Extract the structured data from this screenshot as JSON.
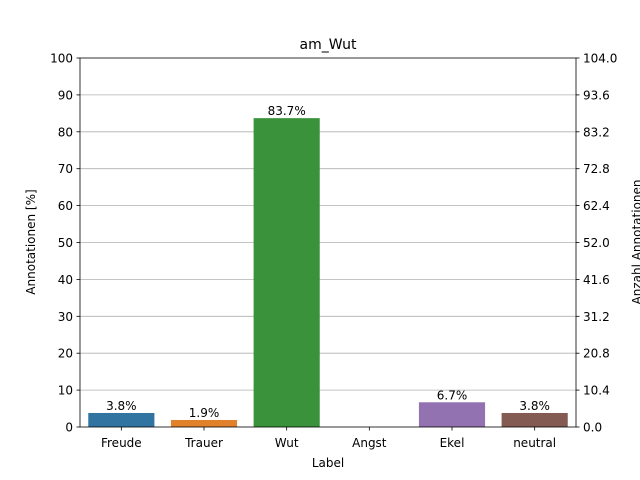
{
  "chart_data": {
    "type": "bar",
    "title": "am_Wut",
    "xlabel": "Label",
    "ylabel": "Annotationen [%]",
    "y2label": "Anzahl Annotationen",
    "categories": [
      "Freude",
      "Trauer",
      "Wut",
      "Angst",
      "Ekel",
      "neutral"
    ],
    "values": [
      3.8,
      1.9,
      83.7,
      0.0,
      6.7,
      3.8
    ],
    "value_labels": [
      "3.8%",
      "1.9%",
      "83.7%",
      "",
      "6.7%",
      "3.8%"
    ],
    "colors": [
      "#3274a1",
      "#e1812c",
      "#3a923a",
      "#c03d3e",
      "#9372b2",
      "#845b53"
    ],
    "ylim": [
      0,
      100
    ],
    "yticks": [
      "0",
      "10",
      "20",
      "30",
      "40",
      "50",
      "60",
      "70",
      "80",
      "90",
      "100"
    ],
    "y2lim": [
      0,
      104
    ],
    "y2ticks": [
      "0.0",
      "10.4",
      "20.8",
      "31.2",
      "41.6",
      "52.0",
      "62.4",
      "72.8",
      "83.2",
      "93.6",
      "104.0"
    ],
    "grid": "horizontal"
  }
}
